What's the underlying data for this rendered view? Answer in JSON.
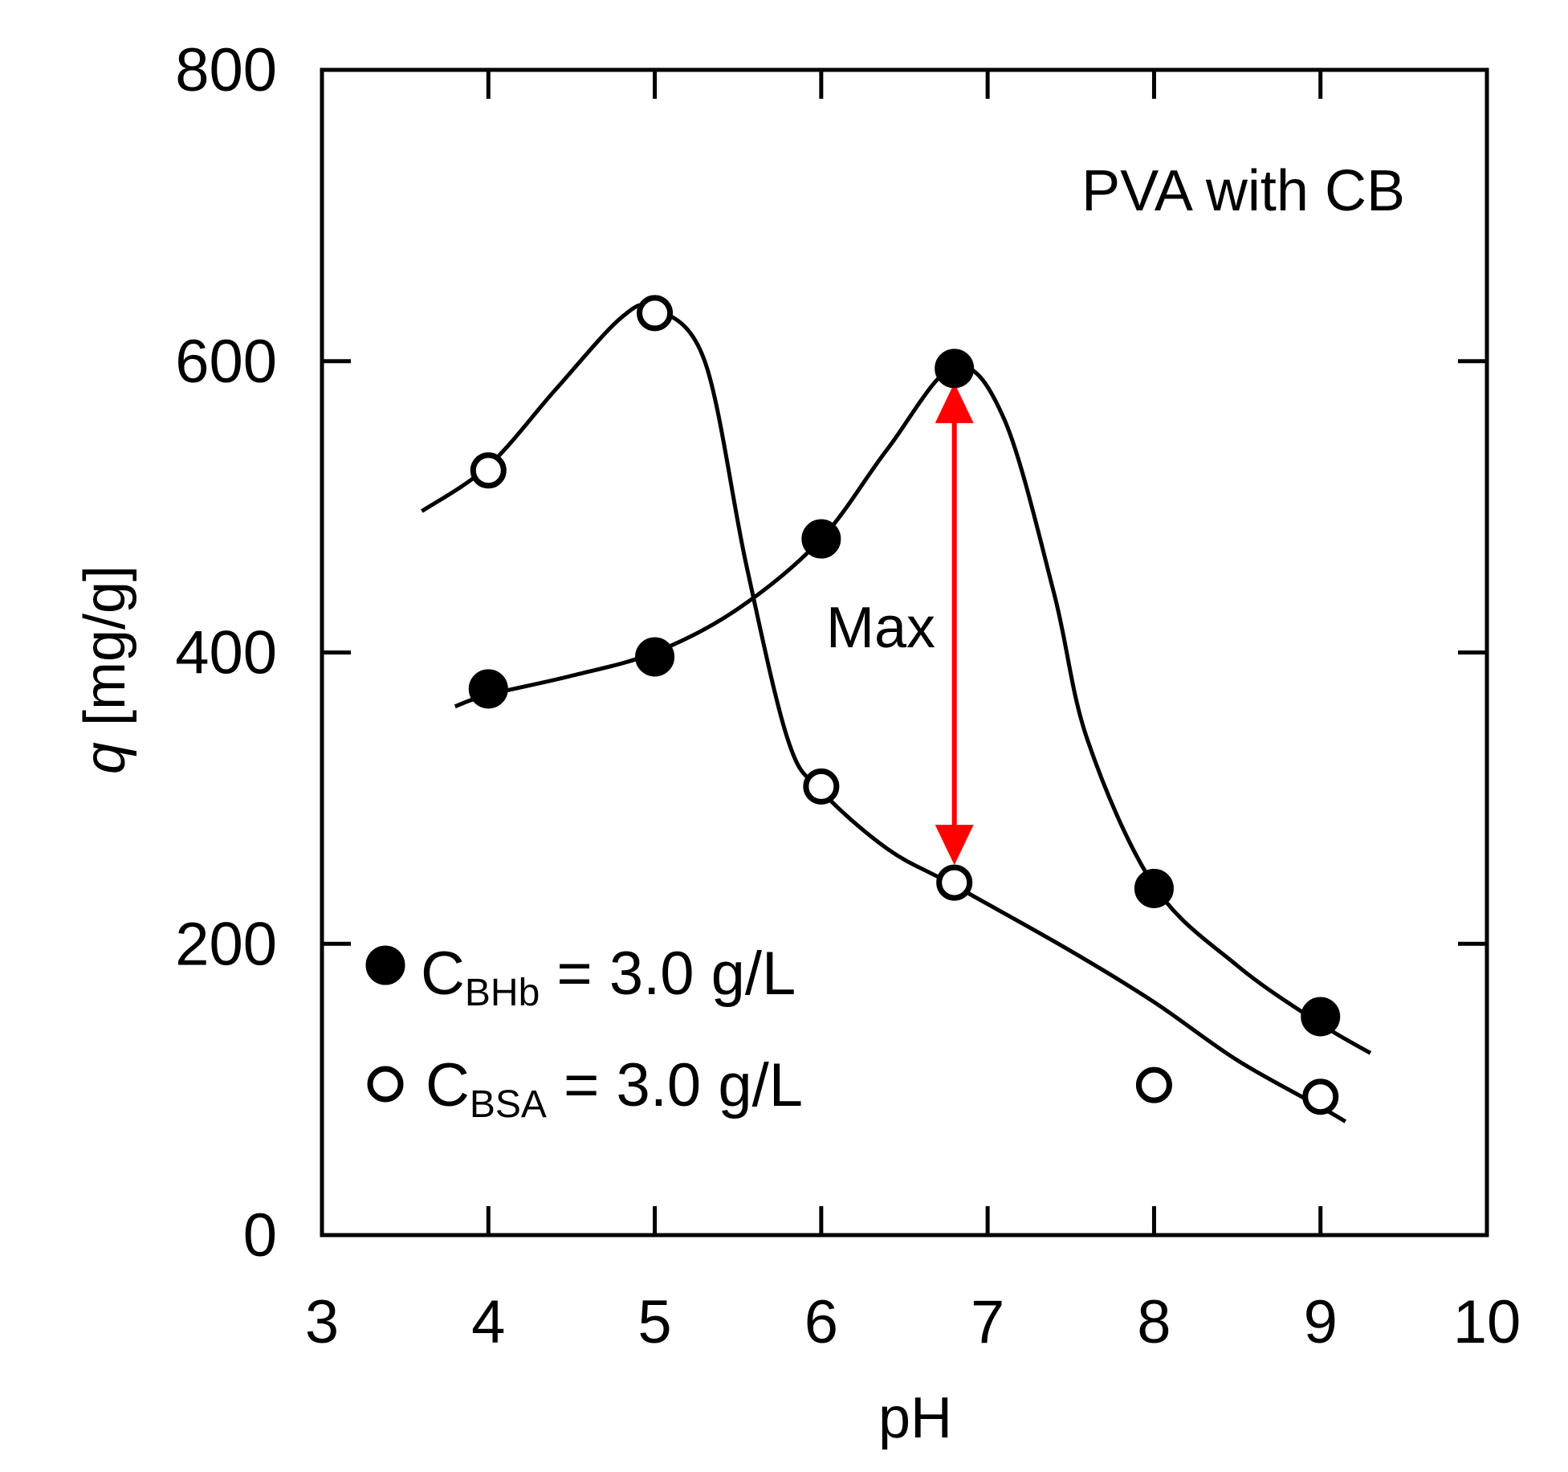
{
  "chart_data": {
    "type": "scatter",
    "title": "",
    "panel_label": "PVA with CB",
    "xlabel": "pH",
    "ylabel_italic": "q",
    "ylabel_rest": " [mg/g]",
    "xlim": [
      3,
      10
    ],
    "ylim": [
      0,
      800
    ],
    "xticks": [
      3,
      4,
      5,
      6,
      7,
      8,
      9,
      10
    ],
    "yticks": [
      0,
      200,
      400,
      600,
      800
    ],
    "xtick_labels": [
      "3",
      "4",
      "5",
      "6",
      "7",
      "8",
      "9",
      "10"
    ],
    "ytick_labels": [
      "0",
      "200",
      "400",
      "600",
      "800"
    ],
    "legend_position": "bottom-left",
    "series": [
      {
        "name": "BHb",
        "legend_main": "C",
        "legend_sub": "BHb",
        "legend_rest": " = 3.0 g/L",
        "marker": "filled-circle",
        "x": [
          4,
          5,
          6,
          6.8,
          8,
          9
        ],
        "y": [
          375,
          397,
          478,
          595,
          238,
          150
        ],
        "curve": [
          [
            3.8,
            363
          ],
          [
            4,
            371
          ],
          [
            4.5,
            384
          ],
          [
            5,
            400
          ],
          [
            5.5,
            430
          ],
          [
            6,
            478
          ],
          [
            6.4,
            540
          ],
          [
            6.8,
            596
          ],
          [
            7.1,
            560
          ],
          [
            7.4,
            440
          ],
          [
            7.6,
            340
          ],
          [
            8,
            240
          ],
          [
            8.5,
            185
          ],
          [
            9,
            145
          ],
          [
            9.3,
            125
          ]
        ]
      },
      {
        "name": "BSA",
        "legend_main": "C",
        "legend_sub": "BSA",
        "legend_rest": " = 3.0 g/L",
        "marker": "open-circle",
        "x": [
          4,
          5,
          6,
          6.8,
          8,
          9
        ],
        "y": [
          525,
          633,
          308,
          242,
          103,
          95
        ],
        "curve": [
          [
            3.6,
            497
          ],
          [
            4,
            528
          ],
          [
            4.4,
            580
          ],
          [
            4.8,
            630
          ],
          [
            5,
            636
          ],
          [
            5.3,
            600
          ],
          [
            5.55,
            460
          ],
          [
            5.8,
            340
          ],
          [
            6,
            305
          ],
          [
            6.4,
            265
          ],
          [
            6.8,
            240
          ],
          [
            7.5,
            195
          ],
          [
            8,
            160
          ],
          [
            8.5,
            120
          ],
          [
            9,
            88
          ],
          [
            9.15,
            78
          ]
        ]
      }
    ],
    "annotation": {
      "text": "Max",
      "color": "#ff0000",
      "x": 6.8,
      "y_from": 242,
      "y_to": 595
    }
  }
}
